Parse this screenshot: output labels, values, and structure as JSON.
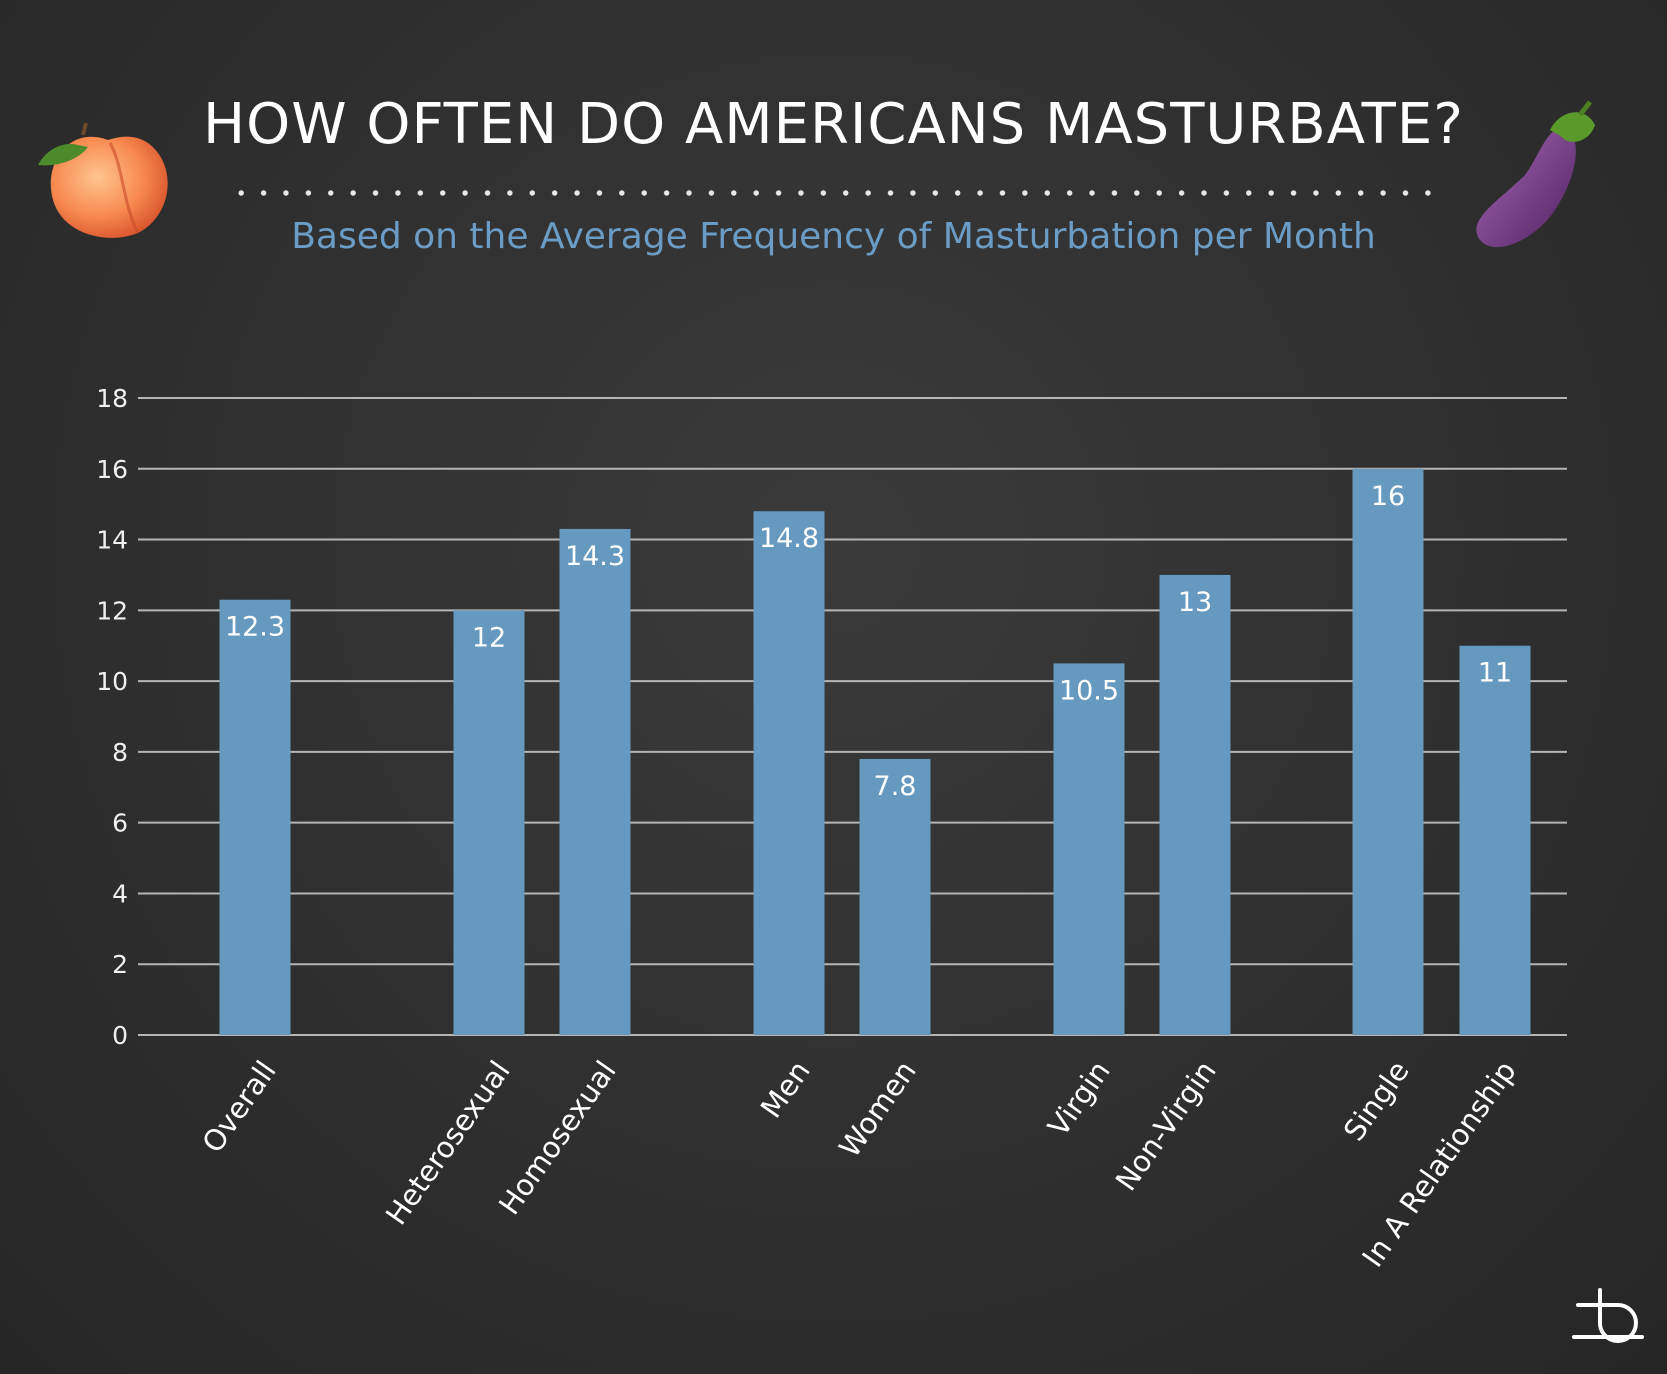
{
  "title": "HOW OFTEN DO AMERICANS MASTURBATE?",
  "subtitle": "Based on the Average Frequency of Masturbation per Month",
  "icons": [
    "peach-icon",
    "eggplant-icon",
    "brand-logo-icon"
  ],
  "colors": {
    "bar": "#6699c0",
    "subtitle": "#6b9cc5",
    "grid": "#b5b5b5"
  },
  "chart_data": {
    "type": "bar",
    "title": "HOW OFTEN DO AMERICANS MASTURBATE?",
    "subtitle": "Based on the Average Frequency of Masturbation per Month",
    "xlabel": "",
    "ylabel": "",
    "ylim": [
      0,
      18
    ],
    "yticks": [
      0,
      2,
      4,
      6,
      8,
      10,
      12,
      14,
      16,
      18
    ],
    "grid": true,
    "categories": [
      "Overall",
      "Heterosexual",
      "Homosexual",
      "Men",
      "Women",
      "Virgin",
      "Non-Virgin",
      "Single",
      "In A Relationship"
    ],
    "values": [
      12.3,
      12,
      14.3,
      14.8,
      7.8,
      10.5,
      13,
      16,
      11
    ],
    "data_labels": [
      "12.3",
      "12",
      "14.3",
      "14.8",
      "7.8",
      "10.5",
      "13",
      "16",
      "11"
    ]
  }
}
